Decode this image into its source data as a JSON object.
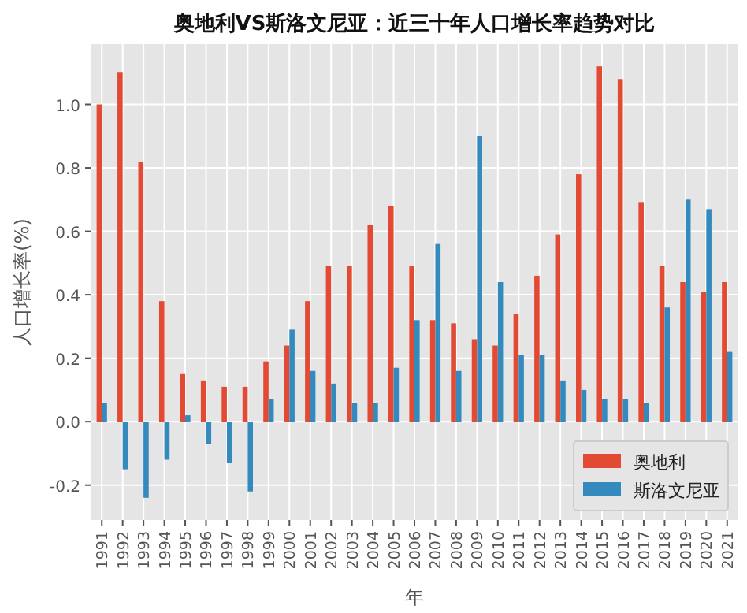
{
  "chart_data": {
    "type": "bar",
    "title": "奥地利VS斯洛文尼亚：近三十年人口增长率趋势对比",
    "xlabel": "年",
    "ylabel": "人口增长率(%)",
    "categories": [
      "1991",
      "1992",
      "1993",
      "1994",
      "1995",
      "1996",
      "1997",
      "1998",
      "1999",
      "2000",
      "2001",
      "2002",
      "2003",
      "2004",
      "2005",
      "2006",
      "2007",
      "2008",
      "2009",
      "2010",
      "2011",
      "2012",
      "2013",
      "2014",
      "2015",
      "2016",
      "2017",
      "2018",
      "2019",
      "2020",
      "2021"
    ],
    "series": [
      {
        "name": "奥地利",
        "color": "#e24a33",
        "values": [
          1.0,
          1.1,
          0.82,
          0.38,
          0.15,
          0.13,
          0.11,
          0.11,
          0.19,
          0.24,
          0.38,
          0.49,
          0.49,
          0.62,
          0.68,
          0.49,
          0.32,
          0.31,
          0.26,
          0.24,
          0.34,
          0.46,
          0.59,
          0.78,
          1.12,
          1.08,
          0.69,
          0.49,
          0.44,
          0.41,
          0.44
        ]
      },
      {
        "name": "斯洛文尼亚",
        "color": "#348abd",
        "values": [
          0.06,
          -0.15,
          -0.24,
          -0.12,
          0.02,
          -0.07,
          -0.13,
          -0.22,
          0.07,
          0.29,
          0.16,
          0.12,
          0.06,
          0.06,
          0.17,
          0.32,
          0.56,
          0.16,
          0.9,
          0.44,
          0.21,
          0.21,
          0.13,
          0.1,
          0.07,
          0.07,
          0.06,
          0.36,
          0.7,
          0.67,
          0.22
        ]
      }
    ],
    "ylim": [
      -0.31,
      1.19
    ],
    "yticks": [
      -0.2,
      {
        "value": 0,
        "label": "0.0"
      },
      0.2,
      0.4,
      0.6,
      0.8,
      {
        "value": 1,
        "label": "1.0"
      }
    ],
    "grid": true,
    "legend": "bottom right"
  }
}
